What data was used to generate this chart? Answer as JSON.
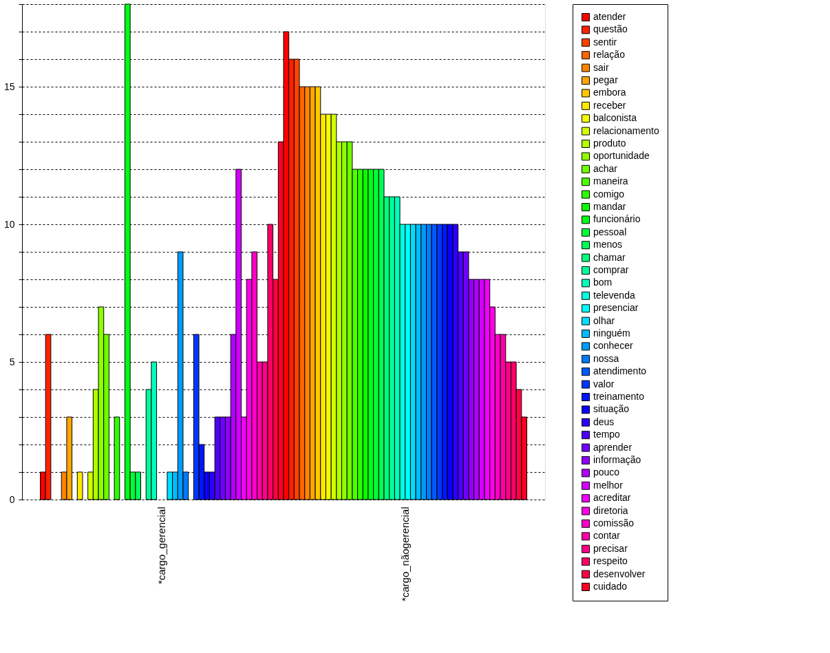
{
  "chart_data": {
    "type": "bar",
    "categories": [
      "*cargo_gerencial",
      "*cargo_nãogerencial"
    ],
    "series": [
      {
        "name": "atender",
        "color": "#ff0000",
        "values": [
          1,
          17
        ]
      },
      {
        "name": "questão",
        "color": "#ff2100",
        "values": [
          6,
          16
        ]
      },
      {
        "name": "sentir",
        "color": "#ff4300",
        "values": [
          0,
          16
        ]
      },
      {
        "name": "relação",
        "color": "#ff6400",
        "values": [
          0,
          15
        ]
      },
      {
        "name": "sair",
        "color": "#ff8500",
        "values": [
          1,
          15
        ]
      },
      {
        "name": "pegar",
        "color": "#ffa600",
        "values": [
          3,
          15
        ]
      },
      {
        "name": "embora",
        "color": "#ffc800",
        "values": [
          0,
          15
        ]
      },
      {
        "name": "receber",
        "color": "#ffe900",
        "values": [
          1,
          14
        ]
      },
      {
        "name": "balconista",
        "color": "#f4ff00",
        "values": [
          0,
          14
        ]
      },
      {
        "name": "relacionamento",
        "color": "#d3ff00",
        "values": [
          1,
          14
        ]
      },
      {
        "name": "produto",
        "color": "#b1ff00",
        "values": [
          4,
          13
        ]
      },
      {
        "name": "oportunidade",
        "color": "#90ff00",
        "values": [
          7,
          13
        ]
      },
      {
        "name": "achar",
        "color": "#6fff00",
        "values": [
          6,
          13
        ]
      },
      {
        "name": "maneira",
        "color": "#4eff00",
        "values": [
          0,
          12
        ]
      },
      {
        "name": "comigo",
        "color": "#2cff00",
        "values": [
          3,
          12
        ]
      },
      {
        "name": "mandar",
        "color": "#0bff00",
        "values": [
          0,
          12
        ]
      },
      {
        "name": "funcionário",
        "color": "#00ff16",
        "values": [
          18,
          12
        ]
      },
      {
        "name": "pessoal",
        "color": "#00ff37",
        "values": [
          1,
          12
        ]
      },
      {
        "name": "menos",
        "color": "#00ff59",
        "values": [
          1,
          12
        ]
      },
      {
        "name": "chamar",
        "color": "#00ff7a",
        "values": [
          0,
          11
        ]
      },
      {
        "name": "comprar",
        "color": "#00ff9b",
        "values": [
          4,
          11
        ]
      },
      {
        "name": "bom",
        "color": "#00ffbc",
        "values": [
          5,
          11
        ]
      },
      {
        "name": "televenda",
        "color": "#00ffde",
        "values": [
          0,
          10
        ]
      },
      {
        "name": "presenciar",
        "color": "#00ffff",
        "values": [
          0,
          10
        ]
      },
      {
        "name": "olhar",
        "color": "#00deff",
        "values": [
          1,
          10
        ]
      },
      {
        "name": "ninguém",
        "color": "#00bcff",
        "values": [
          1,
          10
        ]
      },
      {
        "name": "conhecer",
        "color": "#009bff",
        "values": [
          9,
          10
        ]
      },
      {
        "name": "nossa",
        "color": "#007aff",
        "values": [
          1,
          10
        ]
      },
      {
        "name": "atendimento",
        "color": "#0059ff",
        "values": [
          0,
          10
        ]
      },
      {
        "name": "valor",
        "color": "#0037ff",
        "values": [
          6,
          10
        ]
      },
      {
        "name": "treinamento",
        "color": "#0016ff",
        "values": [
          2,
          10
        ]
      },
      {
        "name": "situação",
        "color": "#0b00ff",
        "values": [
          1,
          10
        ]
      },
      {
        "name": "deus",
        "color": "#2c00ff",
        "values": [
          1,
          10
        ]
      },
      {
        "name": "tempo",
        "color": "#4e00ff",
        "values": [
          3,
          9
        ]
      },
      {
        "name": "aprender",
        "color": "#6f00ff",
        "values": [
          3,
          9
        ]
      },
      {
        "name": "informação",
        "color": "#9000ff",
        "values": [
          3,
          8
        ]
      },
      {
        "name": "pouco",
        "color": "#b100ff",
        "values": [
          6,
          8
        ]
      },
      {
        "name": "melhor",
        "color": "#d300ff",
        "values": [
          12,
          8
        ]
      },
      {
        "name": "acreditar",
        "color": "#f400ff",
        "values": [
          3,
          8
        ]
      },
      {
        "name": "diretoria",
        "color": "#ff00e9",
        "values": [
          8,
          7
        ]
      },
      {
        "name": "comissão",
        "color": "#ff00c8",
        "values": [
          9,
          6
        ]
      },
      {
        "name": "contar",
        "color": "#ff00a6",
        "values": [
          5,
          6
        ]
      },
      {
        "name": "precisar",
        "color": "#ff0085",
        "values": [
          5,
          5
        ]
      },
      {
        "name": "respeito",
        "color": "#ff0064",
        "values": [
          10,
          5
        ]
      },
      {
        "name": "desenvolver",
        "color": "#ff0043",
        "values": [
          8,
          4
        ]
      },
      {
        "name": "cuidado",
        "color": "#ff0021",
        "values": [
          13,
          3
        ]
      }
    ],
    "ylim": [
      0,
      18
    ],
    "yticks": [
      0,
      {
        "value": 1,
        "label": null
      },
      {
        "value": 2,
        "label": null
      },
      {
        "value": 3,
        "label": null
      },
      {
        "value": 4,
        "label": null
      },
      5,
      {
        "value": 6,
        "label": null
      },
      {
        "value": 7,
        "label": null
      },
      {
        "value": 8,
        "label": null
      },
      {
        "value": 9,
        "label": null
      },
      10,
      {
        "value": 11,
        "label": null
      },
      {
        "value": 12,
        "label": null
      },
      {
        "value": 13,
        "label": null
      },
      {
        "value": 14,
        "label": null
      },
      15,
      {
        "value": 16,
        "label": null
      },
      {
        "value": 17,
        "label": null
      },
      {
        "value": 18,
        "label": null
      }
    ],
    "grid": true,
    "legend": "right"
  }
}
